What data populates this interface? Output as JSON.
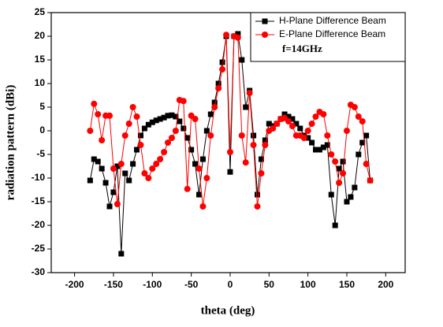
{
  "chart_data": {
    "type": "line",
    "x": [
      -180,
      -175,
      -170,
      -165,
      -160,
      -155,
      -150,
      -145,
      -140,
      -135,
      -130,
      -125,
      -120,
      -115,
      -110,
      -105,
      -100,
      -95,
      -90,
      -85,
      -80,
      -75,
      -70,
      -65,
      -60,
      -55,
      -50,
      -45,
      -40,
      -35,
      -30,
      -25,
      -20,
      -15,
      -10,
      -5,
      0,
      5,
      10,
      15,
      20,
      25,
      30,
      35,
      40,
      45,
      50,
      55,
      60,
      65,
      70,
      75,
      80,
      85,
      90,
      95,
      100,
      105,
      110,
      115,
      120,
      125,
      130,
      135,
      140,
      145,
      150,
      155,
      160,
      165,
      170,
      175,
      180
    ],
    "series": [
      {
        "name": "H-Plane Difference Beam",
        "color": "#000000",
        "marker": "square",
        "values": [
          -10.5,
          -6,
          -6.5,
          -8,
          -11,
          -16,
          -13,
          -7.5,
          -26,
          -9,
          -10.5,
          -7,
          -4,
          -1,
          0.5,
          1.3,
          1.8,
          2.2,
          2.5,
          2.8,
          3.2,
          3.3,
          3,
          2,
          0.5,
          -1.5,
          -4,
          -7,
          -13.5,
          -6,
          0,
          3.5,
          6,
          10,
          14.5,
          20,
          -8.7,
          20,
          20.5,
          15,
          5,
          8.5,
          -1,
          -13.5,
          -6,
          -2,
          1.5,
          1,
          1.5,
          2.5,
          3.5,
          3,
          2.5,
          1.5,
          0.5,
          -1,
          -1.5,
          -2.5,
          -4,
          -4,
          -3.5,
          -3,
          -13.5,
          -20,
          -8,
          -6.5,
          -15,
          -14,
          -12,
          -5,
          -2.5,
          -1,
          -10.5
        ]
      },
      {
        "name": "E-Plane Difference Beam",
        "color": "#ff0000",
        "marker": "circle",
        "values": [
          0,
          5.7,
          3.5,
          -2,
          3.2,
          3.2,
          -8,
          -15.5,
          -7,
          -1,
          1.5,
          5,
          3,
          -3,
          -9,
          -10,
          -8,
          -7,
          -6,
          -4.5,
          -2.5,
          -1.5,
          0,
          6.5,
          6.3,
          -12.3,
          3.2,
          2.5,
          -8,
          -16,
          -10,
          -1,
          5,
          9,
          13,
          20.3,
          -4.5,
          20,
          19.7,
          -1,
          -6.7,
          8,
          -3,
          -16,
          -9,
          -3,
          0,
          0.5,
          1.5,
          2.5,
          2.7,
          2,
          1,
          -1,
          -1,
          -1.5,
          0,
          1.5,
          3,
          4,
          3.5,
          -1,
          -5,
          -6.5,
          -11,
          -9,
          0,
          5.5,
          5,
          3,
          2,
          -7,
          -10.5
        ]
      }
    ],
    "xlim": [
      -230,
      225
    ],
    "ylim": [
      -30,
      25
    ],
    "xticks": [
      -200,
      -150,
      -100,
      -50,
      0,
      50,
      100,
      150,
      200
    ],
    "yticks": [
      25,
      20,
      15,
      10,
      5,
      0,
      -5,
      -10,
      -15,
      -20,
      -25,
      -30
    ],
    "xlabel": "theta (deg)",
    "ylabel": "radiation pattern (dBi)",
    "annotation": "f=14GHz",
    "legend": "upper right",
    "grid": false
  }
}
